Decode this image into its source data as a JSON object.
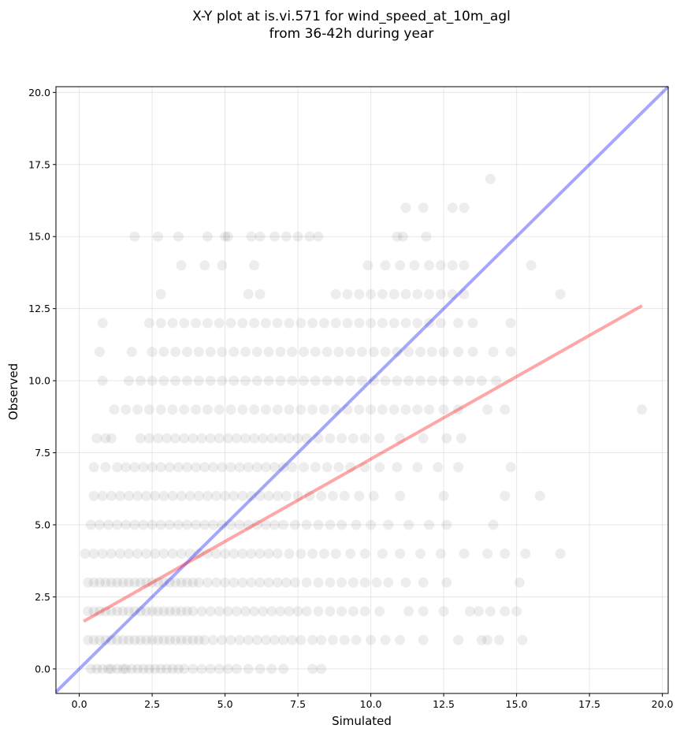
{
  "chart_data": {
    "type": "scatter",
    "title_lines": [
      "X-Y plot at is.vi.571 for wind_speed_at_10m_agl",
      "from 36-42h during year"
    ],
    "xlabel": "Simulated",
    "ylabel": "Observed",
    "xlim": [
      -0.8,
      20.2
    ],
    "ylim": [
      -0.85,
      20.2
    ],
    "xticks": [
      0.0,
      2.5,
      5.0,
      7.5,
      10.0,
      12.5,
      15.0,
      17.5,
      20.0
    ],
    "yticks": [
      0.0,
      2.5,
      5.0,
      7.5,
      10.0,
      12.5,
      15.0,
      17.5,
      20.0
    ],
    "xtick_labels": [
      "0.0",
      "2.5",
      "5.0",
      "7.5",
      "10.0",
      "12.5",
      "15.0",
      "17.5",
      "20.0"
    ],
    "ytick_labels": [
      "0.0",
      "2.5",
      "5.0",
      "7.5",
      "10.0",
      "12.5",
      "15.0",
      "17.5",
      "20.0"
    ],
    "grid": true,
    "point_color": "#000000",
    "point_alpha": 0.07,
    "identity_line": {
      "color": "#0000ff",
      "alpha": 0.35,
      "x": [
        -0.8,
        20.2
      ],
      "y": [
        -0.8,
        20.2
      ]
    },
    "regression_line": {
      "color": "#ff0000",
      "alpha": 0.35,
      "x": [
        0.15,
        19.3
      ],
      "y": [
        1.65,
        12.6
      ]
    },
    "series": [
      {
        "observed": 0,
        "simulated": [
          0.4,
          0.6,
          0.8,
          1.0,
          1.1,
          1.3,
          1.5,
          1.6,
          1.8,
          2.0,
          2.2,
          2.4,
          2.6,
          2.8,
          3.0,
          3.2,
          3.4,
          3.6,
          3.9,
          4.2,
          4.5,
          4.8,
          5.1,
          5.4,
          5.8,
          6.2,
          6.6,
          7.0,
          8.0,
          8.3
        ]
      },
      {
        "observed": 1,
        "simulated": [
          0.3,
          0.5,
          0.7,
          0.9,
          1.1,
          1.3,
          1.5,
          1.7,
          1.9,
          2.1,
          2.3,
          2.5,
          2.7,
          2.9,
          3.1,
          3.3,
          3.5,
          3.7,
          3.9,
          4.1,
          4.3,
          4.6,
          4.9,
          5.2,
          5.5,
          5.8,
          6.1,
          6.4,
          6.7,
          7.0,
          7.3,
          7.6,
          8.0,
          8.3,
          8.7,
          9.1,
          9.5,
          10.0,
          10.5,
          11.0,
          11.8,
          13.0,
          13.8,
          14.0,
          14.4,
          15.2
        ]
      },
      {
        "observed": 2,
        "simulated": [
          0.3,
          0.5,
          0.7,
          0.9,
          1.1,
          1.3,
          1.5,
          1.7,
          1.9,
          2.1,
          2.3,
          2.5,
          2.7,
          2.9,
          3.1,
          3.3,
          3.5,
          3.7,
          3.9,
          4.2,
          4.5,
          4.8,
          5.1,
          5.4,
          5.7,
          6.0,
          6.3,
          6.6,
          6.9,
          7.2,
          7.5,
          7.8,
          8.2,
          8.6,
          9.0,
          9.4,
          9.8,
          10.3,
          11.3,
          11.8,
          12.5,
          13.4,
          13.7,
          14.1,
          14.6,
          15.0
        ]
      },
      {
        "observed": 3,
        "simulated": [
          0.3,
          0.5,
          0.7,
          0.9,
          1.1,
          1.3,
          1.5,
          1.7,
          1.9,
          2.1,
          2.3,
          2.5,
          2.7,
          2.9,
          3.1,
          3.3,
          3.5,
          3.7,
          3.9,
          4.1,
          4.4,
          4.7,
          5.0,
          5.3,
          5.6,
          5.9,
          6.2,
          6.5,
          6.8,
          7.1,
          7.4,
          7.8,
          8.2,
          8.6,
          9.0,
          9.4,
          9.8,
          10.2,
          10.6,
          11.2,
          11.8,
          12.6,
          15.1
        ]
      },
      {
        "observed": 4,
        "simulated": [
          0.2,
          0.5,
          0.8,
          1.1,
          1.4,
          1.7,
          2.0,
          2.3,
          2.6,
          2.9,
          3.2,
          3.5,
          3.8,
          4.1,
          4.4,
          4.7,
          5.0,
          5.3,
          5.6,
          5.9,
          6.2,
          6.5,
          6.8,
          7.2,
          7.6,
          8.0,
          8.4,
          8.8,
          9.3,
          9.8,
          10.4,
          11.0,
          11.7,
          12.4,
          13.2,
          14.0,
          14.6,
          15.3,
          16.5
        ]
      },
      {
        "observed": 5,
        "simulated": [
          0.4,
          0.7,
          1.0,
          1.3,
          1.6,
          1.9,
          2.2,
          2.5,
          2.8,
          3.1,
          3.4,
          3.7,
          4.0,
          4.3,
          4.6,
          4.9,
          5.2,
          5.5,
          5.8,
          6.1,
          6.4,
          6.7,
          7.0,
          7.4,
          7.8,
          8.2,
          8.6,
          9.0,
          9.5,
          10.0,
          10.6,
          11.3,
          12.0,
          12.6,
          14.2
        ]
      },
      {
        "observed": 6,
        "simulated": [
          0.5,
          0.8,
          1.1,
          1.4,
          1.7,
          2.0,
          2.3,
          2.6,
          2.9,
          3.2,
          3.5,
          3.8,
          4.1,
          4.4,
          4.7,
          5.0,
          5.3,
          5.6,
          5.9,
          6.2,
          6.5,
          6.8,
          7.1,
          7.5,
          7.9,
          8.3,
          8.7,
          9.1,
          9.6,
          10.1,
          11.0,
          12.5,
          14.6,
          15.8
        ]
      },
      {
        "observed": 7,
        "simulated": [
          0.5,
          0.9,
          1.3,
          1.6,
          1.9,
          2.2,
          2.5,
          2.8,
          3.1,
          3.4,
          3.7,
          4.0,
          4.3,
          4.6,
          4.9,
          5.2,
          5.5,
          5.8,
          6.1,
          6.4,
          6.7,
          7.0,
          7.3,
          7.7,
          8.1,
          8.5,
          8.9,
          9.3,
          9.8,
          10.3,
          10.9,
          11.6,
          12.3,
          13.0,
          14.8
        ]
      },
      {
        "observed": 8,
        "simulated": [
          0.6,
          0.9,
          1.1,
          2.1,
          2.4,
          2.7,
          3.0,
          3.3,
          3.6,
          3.9,
          4.2,
          4.5,
          4.8,
          5.1,
          5.4,
          5.7,
          6.0,
          6.3,
          6.6,
          6.9,
          7.2,
          7.5,
          7.8,
          8.2,
          8.6,
          9.0,
          9.4,
          9.8,
          10.3,
          11.0,
          11.8,
          12.6,
          13.1
        ]
      },
      {
        "observed": 9,
        "simulated": [
          1.2,
          1.6,
          2.0,
          2.4,
          2.8,
          3.2,
          3.6,
          4.0,
          4.4,
          4.8,
          5.2,
          5.6,
          6.0,
          6.4,
          6.8,
          7.2,
          7.6,
          8.0,
          8.4,
          8.8,
          9.2,
          9.6,
          10.0,
          10.4,
          10.8,
          11.2,
          11.6,
          12.0,
          12.5,
          13.0,
          14.0,
          14.6,
          19.3
        ]
      },
      {
        "observed": 10,
        "simulated": [
          0.8,
          1.7,
          2.1,
          2.5,
          2.9,
          3.3,
          3.7,
          4.1,
          4.5,
          4.9,
          5.3,
          5.7,
          6.1,
          6.5,
          6.9,
          7.3,
          7.7,
          8.1,
          8.5,
          8.9,
          9.3,
          9.7,
          10.1,
          10.5,
          10.9,
          11.3,
          11.7,
          12.1,
          12.5,
          13.0,
          13.4,
          13.8,
          14.3
        ]
      },
      {
        "observed": 11,
        "simulated": [
          0.7,
          1.8,
          2.5,
          2.9,
          3.3,
          3.7,
          4.1,
          4.5,
          4.9,
          5.3,
          5.7,
          6.1,
          6.5,
          6.9,
          7.3,
          7.7,
          8.1,
          8.5,
          8.9,
          9.3,
          9.7,
          10.1,
          10.5,
          10.9,
          11.3,
          11.7,
          12.1,
          12.5,
          13.0,
          13.5,
          14.2,
          14.8
        ]
      },
      {
        "observed": 12,
        "simulated": [
          0.8,
          2.4,
          2.8,
          3.2,
          3.6,
          4.0,
          4.4,
          4.8,
          5.2,
          5.6,
          6.0,
          6.4,
          6.8,
          7.2,
          7.6,
          8.0,
          8.4,
          8.8,
          9.2,
          9.6,
          10.0,
          10.4,
          10.8,
          11.2,
          11.6,
          12.0,
          12.4,
          13.0,
          13.5,
          14.8
        ]
      },
      {
        "observed": 13,
        "simulated": [
          2.8,
          5.8,
          6.2,
          8.8,
          9.2,
          9.6,
          10.0,
          10.4,
          10.8,
          11.2,
          11.6,
          12.0,
          12.4,
          12.8,
          13.2,
          16.5
        ]
      },
      {
        "observed": 14,
        "simulated": [
          3.5,
          4.3,
          4.9,
          6.0,
          9.9,
          10.5,
          11.0,
          11.5,
          12.0,
          12.4,
          12.8,
          13.2,
          15.5
        ]
      },
      {
        "observed": 15,
        "simulated": [
          1.9,
          2.7,
          3.4,
          4.4,
          5.0,
          5.1,
          5.9,
          6.2,
          6.7,
          7.1,
          7.5,
          7.9,
          8.2,
          10.9,
          11.1,
          11.9
        ]
      },
      {
        "observed": 16,
        "simulated": [
          11.2,
          11.8,
          12.8,
          13.2
        ]
      },
      {
        "observed": 17,
        "simulated": [
          14.1
        ]
      }
    ]
  }
}
